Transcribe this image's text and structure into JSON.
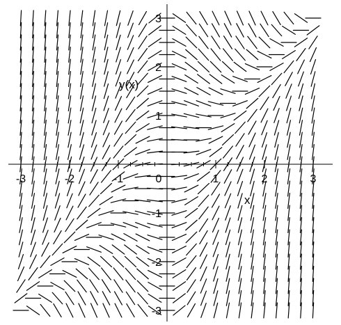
{
  "chart_data": {
    "type": "direction-field",
    "xlabel": "x",
    "ylabel": "y(x)",
    "xlim": [
      -3.3,
      3.3
    ],
    "ylim": [
      -3.3,
      3.3
    ],
    "xticks": [
      "-3",
      "-2",
      "-1",
      "0",
      "1",
      "2",
      "3"
    ],
    "yticks": [
      "-3",
      "-2",
      "-1",
      "1",
      "2",
      "3"
    ],
    "xticks_values": [
      -3,
      -2,
      -1,
      0,
      1,
      2,
      3
    ],
    "yticks_values": [
      -3,
      -2,
      -1,
      1,
      2,
      3
    ],
    "grid_x": [
      -3.0,
      -2.75,
      -2.5,
      -2.25,
      -2.0,
      -1.75,
      -1.5,
      -1.25,
      -1.0,
      -0.75,
      -0.5,
      -0.25,
      0.0,
      0.25,
      0.5,
      0.75,
      1.0,
      1.25,
      1.5,
      1.75,
      2.0,
      2.25,
      2.5,
      2.75,
      3.0
    ],
    "grid_y": [
      -3.0,
      -2.75,
      -2.5,
      -2.25,
      -2.0,
      -1.75,
      -1.5,
      -1.25,
      -1.0,
      -0.75,
      -0.5,
      -0.25,
      0.0,
      0.25,
      0.5,
      0.75,
      1.0,
      1.25,
      1.5,
      1.75,
      2.0,
      2.25,
      2.5,
      2.75,
      3.0
    ],
    "slope_function": "x^2 - x*y",
    "grid": false,
    "legend": "none"
  }
}
